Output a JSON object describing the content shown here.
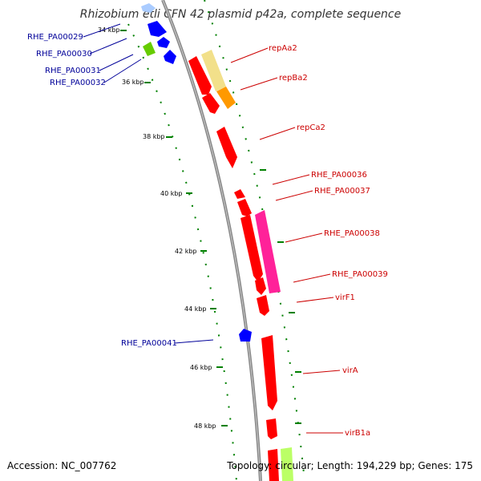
{
  "title": "Rhizobium etli CFN 42 plasmid p42a, complete sequence",
  "accession": "Accession: NC_007762",
  "topology": "Topology: circular; Length: 194,229 bp; Genes: 175",
  "colors": {
    "forward_cds": "#ff0000",
    "reverse_cds": "#0000ff",
    "backbone": "#888888",
    "gc_dots": "#008000",
    "label_forward": "#cc0000",
    "label_reverse": "#000099",
    "highlight_pink": "#ff2299",
    "highlight_yellow": "#f2e08a",
    "highlight_orange": "#ff9900",
    "highlight_green": "#66cc00",
    "highlight_lime": "#bbff66"
  },
  "tick_labels": [
    "34 kbp",
    "36 kbp",
    "38 kbp",
    "40 kbp",
    "42 kbp",
    "44 kbp",
    "46 kbp",
    "48 kbp"
  ],
  "labels_reverse": [
    "RHE_PA00029",
    "RHE_PA00030",
    "RHE_PA00031",
    "RHE_PA00032",
    "RHE_PA00041"
  ],
  "labels_forward": [
    "repAa2",
    "repBa2",
    "repCa2",
    "RHE_PA00036",
    "RHE_PA00037",
    "RHE_PA00038",
    "RHE_PA00039",
    "virF1",
    "virA",
    "virB1a"
  ]
}
